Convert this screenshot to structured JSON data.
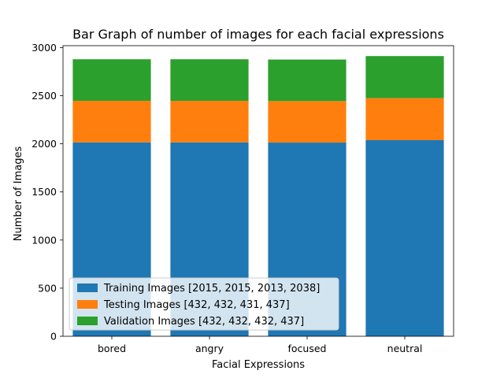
{
  "chart_data": {
    "type": "bar",
    "stacked": true,
    "title": "Bar Graph of number of images for each facial expressions",
    "xlabel": "Facial Expressions",
    "ylabel": "Number of Images",
    "categories": [
      "bored",
      "angry",
      "focused",
      "neutral"
    ],
    "series": [
      {
        "name": "Training Images [2015, 2015, 2013, 2038]",
        "values": [
          2015,
          2015,
          2013,
          2038
        ],
        "color": "#1f77b4"
      },
      {
        "name": "Testing Images [432, 432, 431, 437]",
        "values": [
          432,
          432,
          431,
          437
        ],
        "color": "#ff7f0e"
      },
      {
        "name": "Validation Images [432, 432, 432, 437]",
        "values": [
          432,
          432,
          432,
          437
        ],
        "color": "#2ca02c"
      }
    ],
    "ylim": [
      0,
      3000
    ],
    "yticks": [
      0,
      500,
      1000,
      1500,
      2000,
      2500,
      3000
    ],
    "grid": false,
    "legend_position": "lower-left"
  }
}
